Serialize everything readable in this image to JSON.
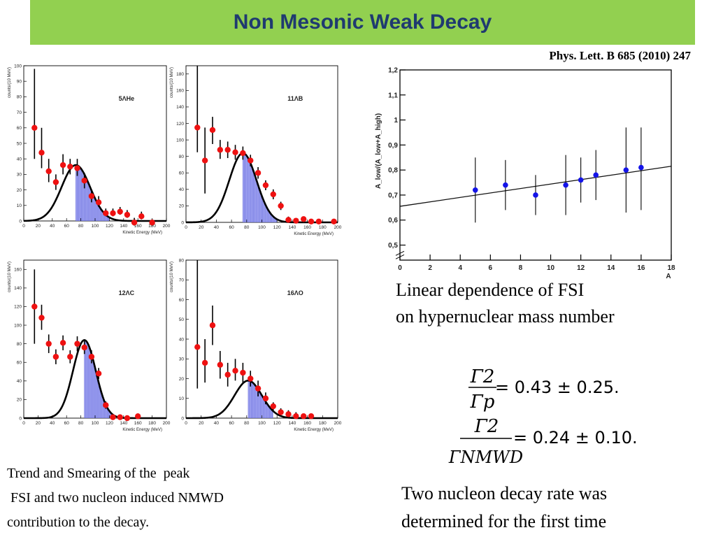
{
  "title": "Non Mesonic  Weak Decay",
  "reference": "Phys. Lett. B 685 (2010) 247",
  "captions": {
    "fsi_line1": "Linear dependence of FSI",
    "fsi_line2": "on hypernuclear mass number",
    "left_line1": "Trend and Smearing of the  peak",
    "left_line2": " FSI and two nucleon induced NMWD",
    "left_line3": "contribution to the decay.",
    "right_line1": "Two nucleon decay rate was",
    "right_line2": "determined for the first time"
  },
  "equations": [
    {
      "num": "Γ2",
      "den": "Γp",
      "rhs": "= 0.43 ± 0.25."
    },
    {
      "num": "Γ2",
      "den": "ΓNMWD",
      "rhs": "= 0.24 ± 0.10."
    }
  ],
  "chart_data": [
    {
      "type": "scatter",
      "label": "5ΛHe",
      "xlabel": "Kinetic Energy (MeV)",
      "ylabel": "counts/(10 MeV)",
      "xlim": [
        0,
        200
      ],
      "ylim": [
        0,
        100
      ],
      "xticks": [
        0,
        20,
        40,
        60,
        80,
        100,
        120,
        140,
        160,
        180,
        200
      ],
      "yticks": [
        0,
        10,
        20,
        30,
        40,
        50,
        60,
        70,
        80,
        90,
        100
      ],
      "points": [
        {
          "x": 15,
          "y": 60,
          "lo": 40,
          "hi": 98
        },
        {
          "x": 25,
          "y": 44,
          "lo": 34,
          "hi": 60
        },
        {
          "x": 35,
          "y": 32,
          "lo": 25,
          "hi": 40
        },
        {
          "x": 45,
          "y": 25,
          "lo": 20,
          "hi": 30
        },
        {
          "x": 55,
          "y": 36,
          "lo": 30,
          "hi": 43
        },
        {
          "x": 65,
          "y": 35,
          "lo": 30,
          "hi": 40
        },
        {
          "x": 75,
          "y": 34,
          "lo": 29,
          "hi": 40
        },
        {
          "x": 85,
          "y": 26,
          "lo": 21,
          "hi": 31
        },
        {
          "x": 95,
          "y": 16,
          "lo": 12,
          "hi": 20
        },
        {
          "x": 105,
          "y": 12,
          "lo": 9,
          "hi": 16
        },
        {
          "x": 115,
          "y": 5,
          "lo": 3,
          "hi": 8
        },
        {
          "x": 125,
          "y": 5,
          "lo": 3,
          "hi": 8
        },
        {
          "x": 135,
          "y": 6,
          "lo": 4,
          "hi": 9
        },
        {
          "x": 145,
          "y": 4,
          "lo": 2,
          "hi": 7
        },
        {
          "x": 155,
          "y": -1,
          "lo": -3,
          "hi": 2
        },
        {
          "x": 165,
          "y": 3,
          "lo": 1,
          "hi": 6
        },
        {
          "x": 180,
          "y": -1,
          "lo": -3,
          "hi": 1
        }
      ],
      "fit": {
        "amplitude": 36,
        "mean": 73,
        "sigma": 20
      },
      "shade": [
        73,
        120
      ]
    },
    {
      "type": "scatter",
      "label": "11ΛB",
      "xlabel": "Kinetic Energy (MeV)",
      "ylabel": "counts/(10 MeV)",
      "xlim": [
        0,
        200
      ],
      "ylim": [
        0,
        190
      ],
      "xticks": [
        0,
        20,
        40,
        60,
        80,
        100,
        120,
        140,
        160,
        180,
        200
      ],
      "yticks": [
        0,
        20,
        40,
        60,
        80,
        100,
        120,
        140,
        160,
        180
      ],
      "points": [
        {
          "x": 15,
          "y": 115,
          "lo": 85,
          "hi": 190
        },
        {
          "x": 25,
          "y": 75,
          "lo": 35,
          "hi": 115
        },
        {
          "x": 35,
          "y": 112,
          "lo": 95,
          "hi": 128
        },
        {
          "x": 45,
          "y": 88,
          "lo": 77,
          "hi": 100
        },
        {
          "x": 55,
          "y": 88,
          "lo": 78,
          "hi": 98
        },
        {
          "x": 65,
          "y": 85,
          "lo": 76,
          "hi": 94
        },
        {
          "x": 75,
          "y": 84,
          "lo": 76,
          "hi": 92
        },
        {
          "x": 85,
          "y": 75,
          "lo": 68,
          "hi": 82
        },
        {
          "x": 95,
          "y": 60,
          "lo": 53,
          "hi": 67
        },
        {
          "x": 105,
          "y": 45,
          "lo": 39,
          "hi": 51
        },
        {
          "x": 115,
          "y": 34,
          "lo": 28,
          "hi": 40
        },
        {
          "x": 125,
          "y": 20,
          "lo": 15,
          "hi": 25
        },
        {
          "x": 135,
          "y": 3,
          "lo": 0,
          "hi": 7
        },
        {
          "x": 145,
          "y": 2,
          "lo": 0,
          "hi": 5
        },
        {
          "x": 155,
          "y": 4,
          "lo": 1,
          "hi": 7
        },
        {
          "x": 165,
          "y": 1,
          "lo": -1,
          "hi": 4
        },
        {
          "x": 175,
          "y": 1,
          "lo": -1,
          "hi": 4
        },
        {
          "x": 195,
          "y": 1,
          "lo": -1,
          "hi": 3
        }
      ],
      "fit": {
        "amplitude": 84,
        "mean": 75,
        "sigma": 18
      },
      "shade": [
        75,
        120
      ]
    },
    {
      "type": "scatter",
      "label": "12ΛC",
      "xlabel": "Kinetic Energy (MeV)",
      "ylabel": "counts/(10 MeV)",
      "xlim": [
        0,
        200
      ],
      "ylim": [
        0,
        170
      ],
      "xticks": [
        0,
        20,
        40,
        60,
        80,
        100,
        120,
        140,
        160,
        180,
        200
      ],
      "yticks": [
        0,
        20,
        40,
        60,
        80,
        100,
        120,
        140,
        160
      ],
      "points": [
        {
          "x": 15,
          "y": 120,
          "lo": 80,
          "hi": 160
        },
        {
          "x": 25,
          "y": 108,
          "lo": 95,
          "hi": 122
        },
        {
          "x": 35,
          "y": 80,
          "lo": 70,
          "hi": 90
        },
        {
          "x": 45,
          "y": 66,
          "lo": 58,
          "hi": 74
        },
        {
          "x": 55,
          "y": 81,
          "lo": 73,
          "hi": 89
        },
        {
          "x": 65,
          "y": 66,
          "lo": 59,
          "hi": 73
        },
        {
          "x": 75,
          "y": 80,
          "lo": 72,
          "hi": 88
        },
        {
          "x": 85,
          "y": 76,
          "lo": 69,
          "hi": 83
        },
        {
          "x": 95,
          "y": 66,
          "lo": 59,
          "hi": 73
        },
        {
          "x": 105,
          "y": 48,
          "lo": 42,
          "hi": 54
        },
        {
          "x": 115,
          "y": 14,
          "lo": 10,
          "hi": 18
        },
        {
          "x": 125,
          "y": 1,
          "lo": -1,
          "hi": 4
        },
        {
          "x": 135,
          "y": 1,
          "lo": -1,
          "hi": 4
        },
        {
          "x": 145,
          "y": 0,
          "lo": -2,
          "hi": 3
        },
        {
          "x": 160,
          "y": 2,
          "lo": 0,
          "hi": 5
        }
      ],
      "fit": {
        "amplitude": 84,
        "mean": 85,
        "sigma": 16
      },
      "shade": [
        85,
        125
      ]
    },
    {
      "type": "scatter",
      "label": "16ΛO",
      "xlabel": "Kinetic Energy (MeV)",
      "ylabel": "counts/(10 MeV)",
      "xlim": [
        0,
        200
      ],
      "ylim": [
        0,
        80
      ],
      "xticks": [
        0,
        20,
        40,
        60,
        80,
        100,
        120,
        140,
        160,
        180,
        200
      ],
      "yticks": [
        0,
        10,
        20,
        30,
        40,
        50,
        60,
        70,
        80
      ],
      "points": [
        {
          "x": 15,
          "y": 36,
          "lo": 15,
          "hi": 80
        },
        {
          "x": 25,
          "y": 28,
          "lo": 18,
          "hi": 40
        },
        {
          "x": 35,
          "y": 47,
          "lo": 37,
          "hi": 57
        },
        {
          "x": 45,
          "y": 27,
          "lo": 20,
          "hi": 34
        },
        {
          "x": 55,
          "y": 22,
          "lo": 16,
          "hi": 28
        },
        {
          "x": 65,
          "y": 24,
          "lo": 19,
          "hi": 30
        },
        {
          "x": 75,
          "y": 23,
          "lo": 18,
          "hi": 28
        },
        {
          "x": 85,
          "y": 20,
          "lo": 16,
          "hi": 24
        },
        {
          "x": 95,
          "y": 15,
          "lo": 11,
          "hi": 19
        },
        {
          "x": 105,
          "y": 10,
          "lo": 7,
          "hi": 13
        },
        {
          "x": 115,
          "y": 6,
          "lo": 4,
          "hi": 8
        },
        {
          "x": 125,
          "y": 3,
          "lo": 2,
          "hi": 5
        },
        {
          "x": 135,
          "y": 2,
          "lo": 1,
          "hi": 4
        },
        {
          "x": 145,
          "y": 1,
          "lo": 0,
          "hi": 3
        },
        {
          "x": 155,
          "y": 1,
          "lo": 0,
          "hi": 2
        },
        {
          "x": 165,
          "y": 1,
          "lo": 0,
          "hi": 2
        }
      ],
      "fit": {
        "amplitude": 19,
        "mean": 82,
        "sigma": 18
      },
      "shade": [
        82,
        115
      ]
    },
    {
      "type": "scatter",
      "xlabel": "A",
      "ylabel": "A_low/(A_low+A_high)",
      "xlim": [
        0,
        18
      ],
      "ylim": [
        0.44,
        1.2
      ],
      "xticks": [
        0,
        2,
        4,
        6,
        8,
        10,
        12,
        14,
        16,
        18
      ],
      "yticks": [
        0.5,
        0.6,
        0.7,
        0.8,
        0.9,
        1,
        1.1,
        1.2
      ],
      "ytick_labels": [
        "0,5",
        "0,6",
        "0,7",
        "0,8",
        "0,9",
        "1",
        "1,1",
        "1,2"
      ],
      "points": [
        {
          "x": 5,
          "y": 0.72,
          "lo": 0.59,
          "hi": 0.85
        },
        {
          "x": 7,
          "y": 0.74,
          "lo": 0.64,
          "hi": 0.84
        },
        {
          "x": 9,
          "y": 0.7,
          "lo": 0.62,
          "hi": 0.78
        },
        {
          "x": 11,
          "y": 0.74,
          "lo": 0.62,
          "hi": 0.86
        },
        {
          "x": 12,
          "y": 0.76,
          "lo": 0.67,
          "hi": 0.85
        },
        {
          "x": 13,
          "y": 0.78,
          "lo": 0.68,
          "hi": 0.88
        },
        {
          "x": 15,
          "y": 0.8,
          "lo": 0.63,
          "hi": 0.97
        },
        {
          "x": 16,
          "y": 0.81,
          "lo": 0.64,
          "hi": 0.97
        }
      ],
      "fit_line": {
        "x0": 0,
        "y0": 0.655,
        "x1": 18,
        "y1": 0.815
      }
    }
  ]
}
